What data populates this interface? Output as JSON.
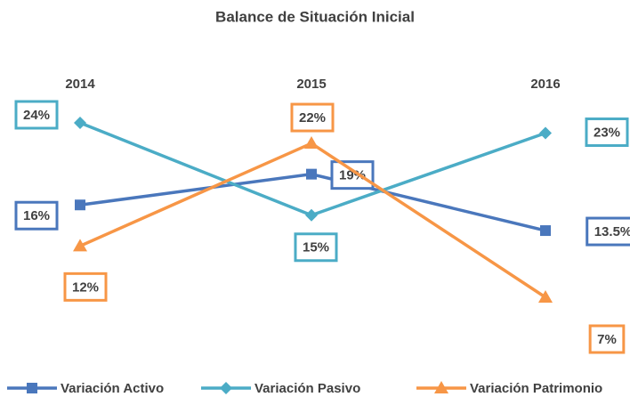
{
  "chart_data": {
    "type": "line",
    "title": "Balance de Situación Inicial",
    "categories": [
      "2014",
      "2015",
      "2016"
    ],
    "series": [
      {
        "name": "Variación Activo",
        "color": "#4a77bc",
        "marker": "square",
        "values": [
          16,
          19,
          13.5
        ],
        "value_labels": [
          "16%",
          "19%",
          "13.5%"
        ]
      },
      {
        "name": "Variación Pasivo",
        "color": "#4bacc6",
        "marker": "diamond",
        "values": [
          24,
          15,
          23
        ],
        "value_labels": [
          "24%",
          "15%",
          "23%"
        ]
      },
      {
        "name": "Variación Patrimonio",
        "color": "#f79646",
        "marker": "triangle",
        "values": [
          12,
          22,
          7
        ],
        "value_labels": [
          "12%",
          "22%",
          "7%"
        ]
      }
    ],
    "legend": "bottom"
  }
}
